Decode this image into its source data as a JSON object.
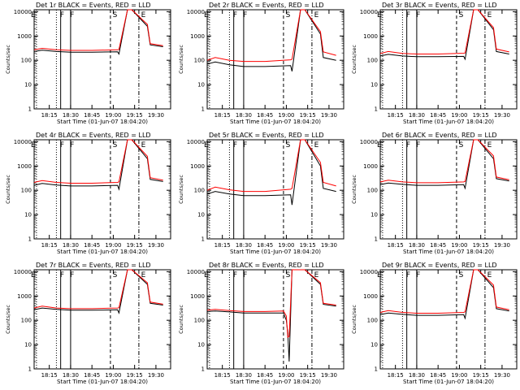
{
  "figure": {
    "xlabel": "Start Time (01-Jun-07 18:04:20)",
    "ylabel": "Counts/sec",
    "xticks": [
      "18:15",
      "18:30",
      "18:45",
      "19:00",
      "19:15",
      "19:30"
    ],
    "yticks": [
      "1",
      "10",
      "100",
      "1000",
      "10000"
    ],
    "colors": {
      "events": "#000000",
      "lld": "#ff0000"
    }
  },
  "chart_data": [
    {
      "type": "line",
      "title": "Det 1r BLACK = Events, RED = LLD",
      "xlabel": "Start Time (01-Jun-07 18:04:20)",
      "ylabel": "Counts/sec",
      "ylim": [
        1,
        12000
      ],
      "yscale": "log",
      "annotations": [
        "E",
        "F",
        "F",
        "S",
        "E"
      ],
      "series": [
        {
          "name": "Events",
          "x": [
            "18:04",
            "18:10",
            "18:20",
            "18:30",
            "18:45",
            "19:03",
            "19:04",
            "19:10",
            "19:13",
            "19:24",
            "19:26",
            "19:35"
          ],
          "values": [
            230,
            260,
            230,
            215,
            215,
            225,
            180,
            12000,
            12000,
            2500,
            430,
            360
          ]
        },
        {
          "name": "LLD",
          "x": [
            "18:04",
            "18:10",
            "18:20",
            "18:30",
            "18:45",
            "19:03",
            "19:04",
            "19:10",
            "19:13",
            "19:24",
            "19:26",
            "19:35"
          ],
          "values": [
            270,
            310,
            270,
            255,
            255,
            270,
            280,
            12000,
            12000,
            3000,
            480,
            400
          ]
        }
      ]
    },
    {
      "type": "line",
      "title": "Det 2r BLACK = Events, RED = LLD",
      "xlabel": "Start Time (01-Jun-07 18:04:20)",
      "ylabel": "Counts/sec",
      "ylim": [
        1,
        12000
      ],
      "yscale": "log",
      "annotations": [
        "E",
        "F",
        "F",
        "S",
        "E"
      ],
      "series": [
        {
          "name": "Events",
          "x": [
            "18:04",
            "18:10",
            "18:20",
            "18:30",
            "18:45",
            "19:03",
            "19:04",
            "19:10",
            "19:13",
            "19:24",
            "19:26",
            "19:35"
          ],
          "values": [
            70,
            85,
            65,
            55,
            55,
            60,
            35,
            12000,
            12000,
            1200,
            130,
            100
          ]
        },
        {
          "name": "LLD",
          "x": [
            "18:04",
            "18:10",
            "18:20",
            "18:30",
            "18:45",
            "19:03",
            "19:04",
            "19:10",
            "19:13",
            "19:24",
            "19:26",
            "19:35"
          ],
          "values": [
            100,
            130,
            100,
            90,
            90,
            105,
            110,
            12000,
            12000,
            1500,
            220,
            160
          ]
        }
      ]
    },
    {
      "type": "line",
      "title": "Det 3r BLACK = Events, RED = LLD",
      "xlabel": "Start Time (01-Jun-07 18:04:20)",
      "ylabel": "Counts/sec",
      "ylim": [
        1,
        12000
      ],
      "yscale": "log",
      "annotations": [
        "E",
        "F",
        "F",
        "S",
        "E"
      ],
      "series": [
        {
          "name": "Events",
          "x": [
            "18:04",
            "18:10",
            "18:20",
            "18:30",
            "18:45",
            "19:03",
            "19:04",
            "19:10",
            "19:13",
            "19:24",
            "19:26",
            "19:35"
          ],
          "values": [
            150,
            175,
            150,
            140,
            140,
            145,
            110,
            12000,
            12000,
            1800,
            230,
            180
          ]
        },
        {
          "name": "LLD",
          "x": [
            "18:04",
            "18:10",
            "18:20",
            "18:30",
            "18:45",
            "19:03",
            "19:04",
            "19:10",
            "19:13",
            "19:24",
            "19:26",
            "19:35"
          ],
          "values": [
            190,
            230,
            190,
            180,
            180,
            195,
            200,
            12000,
            12000,
            2200,
            290,
            220
          ]
        }
      ]
    },
    {
      "type": "line",
      "title": "Det 4r BLACK = Events, RED = LLD",
      "xlabel": "Start Time (01-Jun-07 18:04:20)",
      "ylabel": "Counts/sec",
      "ylim": [
        1,
        12000
      ],
      "yscale": "log",
      "annotations": [
        "E",
        "F",
        "F",
        "S",
        "E"
      ],
      "series": [
        {
          "name": "Events",
          "x": [
            "18:04",
            "18:10",
            "18:20",
            "18:30",
            "18:45",
            "19:03",
            "19:04",
            "19:10",
            "19:13",
            "19:24",
            "19:26",
            "19:35"
          ],
          "values": [
            160,
            190,
            165,
            150,
            150,
            160,
            110,
            12000,
            12000,
            2000,
            280,
            230
          ]
        },
        {
          "name": "LLD",
          "x": [
            "18:04",
            "18:10",
            "18:20",
            "18:30",
            "18:45",
            "19:03",
            "19:04",
            "19:10",
            "19:13",
            "19:24",
            "19:26",
            "19:35"
          ],
          "values": [
            210,
            250,
            210,
            195,
            195,
            210,
            220,
            12000,
            12000,
            2500,
            330,
            260
          ]
        }
      ]
    },
    {
      "type": "line",
      "title": "Det 5r BLACK = Events, RED = LLD",
      "xlabel": "Start Time (01-Jun-07 18:04:20)",
      "ylabel": "Counts/sec",
      "ylim": [
        1,
        12000
      ],
      "yscale": "log",
      "annotations": [
        "E",
        "F",
        "F",
        "S",
        "E"
      ],
      "series": [
        {
          "name": "Events",
          "x": [
            "18:04",
            "18:10",
            "18:20",
            "18:30",
            "18:45",
            "19:03",
            "19:04",
            "19:10",
            "19:13",
            "19:24",
            "19:26",
            "19:35"
          ],
          "values": [
            70,
            90,
            70,
            60,
            60,
            65,
            25,
            12000,
            12000,
            1000,
            120,
            90
          ]
        },
        {
          "name": "LLD",
          "x": [
            "18:04",
            "18:10",
            "18:20",
            "18:30",
            "18:45",
            "19:03",
            "19:04",
            "19:10",
            "19:13",
            "19:24",
            "19:26",
            "19:35"
          ],
          "values": [
            100,
            135,
            105,
            90,
            90,
            110,
            120,
            12000,
            12000,
            1400,
            210,
            150
          ]
        }
      ]
    },
    {
      "type": "line",
      "title": "Det 6r BLACK = Events, RED = LLD",
      "xlabel": "Start Time (01-Jun-07 18:04:20)",
      "ylabel": "Counts/sec",
      "ylim": [
        1,
        12000
      ],
      "yscale": "log",
      "annotations": [
        "E",
        "F",
        "F",
        "S",
        "E"
      ],
      "series": [
        {
          "name": "Events",
          "x": [
            "18:04",
            "18:10",
            "18:20",
            "18:30",
            "18:45",
            "19:03",
            "19:04",
            "19:10",
            "19:13",
            "19:24",
            "19:26",
            "19:35"
          ],
          "values": [
            170,
            200,
            175,
            160,
            160,
            170,
            120,
            12000,
            12000,
            2000,
            300,
            240
          ]
        },
        {
          "name": "LLD",
          "x": [
            "18:04",
            "18:10",
            "18:20",
            "18:30",
            "18:45",
            "19:03",
            "19:04",
            "19:10",
            "19:13",
            "19:24",
            "19:26",
            "19:35"
          ],
          "values": [
            220,
            260,
            220,
            205,
            205,
            220,
            230,
            12000,
            12000,
            2600,
            350,
            270
          ]
        }
      ]
    },
    {
      "type": "line",
      "title": "Det 7r BLACK = Events, RED = LLD",
      "xlabel": "Start Time (01-Jun-07 18:04:20)",
      "ylabel": "Counts/sec",
      "ylim": [
        1,
        12000
      ],
      "yscale": "log",
      "annotations": [
        "E",
        "F",
        "F",
        "S",
        "E"
      ],
      "series": [
        {
          "name": "Events",
          "x": [
            "18:04",
            "18:10",
            "18:20",
            "18:30",
            "18:45",
            "19:03",
            "19:04",
            "19:10",
            "19:13",
            "19:24",
            "19:26",
            "19:35"
          ],
          "values": [
            270,
            320,
            280,
            260,
            260,
            270,
            200,
            12000,
            12000,
            3000,
            500,
            420
          ]
        },
        {
          "name": "LLD",
          "x": [
            "18:04",
            "18:10",
            "18:20",
            "18:30",
            "18:45",
            "19:03",
            "19:04",
            "19:10",
            "19:13",
            "19:24",
            "19:26",
            "19:35"
          ],
          "values": [
            320,
            380,
            320,
            300,
            300,
            320,
            330,
            12000,
            12000,
            3500,
            560,
            460
          ]
        }
      ]
    },
    {
      "type": "line",
      "title": "Det 8r BLACK = Events, RED = LLD",
      "xlabel": "Start Time (01-Jun-07 18:04:20)",
      "ylabel": "Counts/sec",
      "ylim": [
        1,
        12000
      ],
      "yscale": "log",
      "annotations": [
        "E",
        "F",
        "F",
        "S",
        "E"
      ],
      "series": [
        {
          "name": "Events",
          "x": [
            "18:04",
            "18:10",
            "18:20",
            "18:30",
            "18:45",
            "18:58",
            "19:00",
            "19:01",
            "19:02",
            "19:04",
            "19:13",
            "19:24",
            "19:26",
            "19:35"
          ],
          "values": [
            230,
            240,
            220,
            200,
            200,
            200,
            100,
            30,
            2,
            12000,
            12000,
            3000,
            450,
            380
          ]
        },
        {
          "name": "LLD",
          "x": [
            "18:04",
            "18:10",
            "18:20",
            "18:30",
            "18:45",
            "18:58",
            "19:00",
            "19:01",
            "19:02",
            "19:04",
            "19:13",
            "19:24",
            "19:26",
            "19:35"
          ],
          "values": [
            260,
            280,
            250,
            230,
            230,
            240,
            150,
            20,
            22,
            12000,
            12000,
            3500,
            500,
            420
          ]
        }
      ]
    },
    {
      "type": "line",
      "title": "Det 9r BLACK = Events, RED = LLD",
      "xlabel": "Start Time (01-Jun-07 18:04:20)",
      "ylabel": "Counts/sec",
      "ylim": [
        1,
        12000
      ],
      "yscale": "log",
      "annotations": [
        "E",
        "F",
        "F",
        "S",
        "E"
      ],
      "series": [
        {
          "name": "Events",
          "x": [
            "18:04",
            "18:10",
            "18:20",
            "18:30",
            "18:45",
            "19:03",
            "19:04",
            "19:10",
            "19:13",
            "19:24",
            "19:26",
            "19:35"
          ],
          "values": [
            170,
            200,
            175,
            160,
            160,
            170,
            120,
            12000,
            12000,
            2200,
            300,
            240
          ]
        },
        {
          "name": "LLD",
          "x": [
            "18:04",
            "18:10",
            "18:20",
            "18:30",
            "18:45",
            "19:03",
            "19:04",
            "19:10",
            "19:13",
            "19:24",
            "19:26",
            "19:35"
          ],
          "values": [
            210,
            250,
            210,
            195,
            195,
            210,
            220,
            12000,
            12000,
            2800,
            350,
            270
          ]
        }
      ]
    }
  ]
}
